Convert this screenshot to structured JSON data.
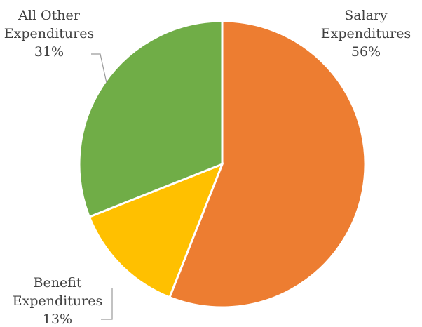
{
  "chart_data": {
    "type": "pie",
    "start_angle_deg": 0,
    "direction": "clockwise",
    "slices": [
      {
        "label_lines": [
          "Salary",
          "Expenditures"
        ],
        "value": 56,
        "value_label": "56%",
        "color": "#ED7D31"
      },
      {
        "label_lines": [
          "Benefit",
          "Expenditures"
        ],
        "value": 13,
        "value_label": "13%",
        "color": "#FFC000"
      },
      {
        "label_lines": [
          "All Other",
          "Expenditures"
        ],
        "value": 31,
        "value_label": "31%",
        "color": "#70AD47"
      }
    ],
    "legend": "none"
  }
}
